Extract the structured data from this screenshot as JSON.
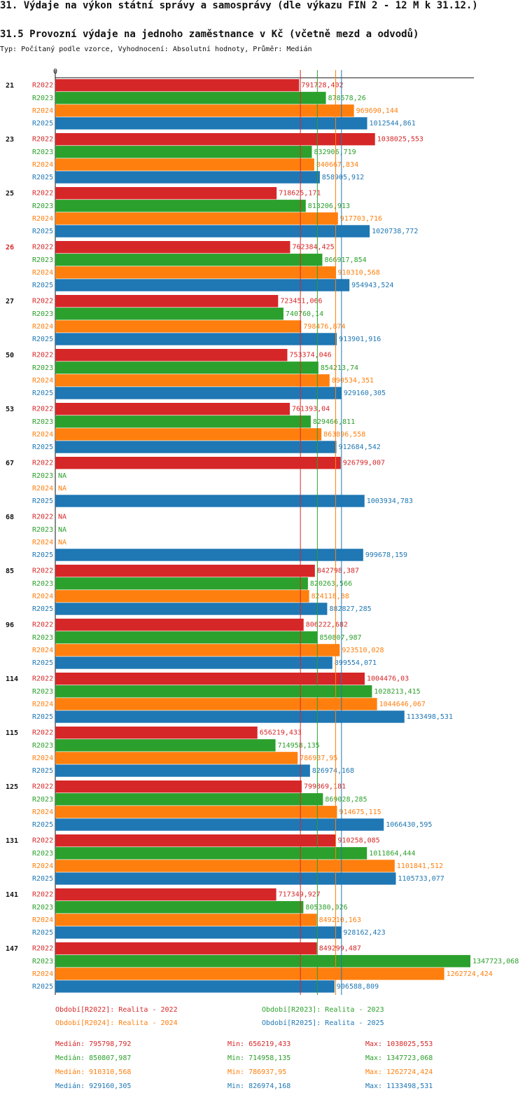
{
  "header": {
    "title": "31. Výdaje na výkon státní správy a samosprávy (dle výkazu FIN 2 - 12 M k 31.12.)",
    "subtitle": "31.5 Provozní výdaje na jednoho zaměstnance v Kč (včetně mezd a odvodů)",
    "type_line": "Typ: Počítaný podle vzorce, Vyhodnocení: Absolutní hodnoty, Průměr: Medián"
  },
  "colors": {
    "R2022": "#d62728",
    "R2023": "#2ca02c",
    "R2024": "#ff7f0e",
    "R2025": "#1f77b4",
    "highlight_group": "#d62728"
  },
  "chart_data": {
    "type": "bar",
    "orientation": "horizontal",
    "title": "31.5 Provozní výdaje na jednoho zaměstnance v Kč (včetně mezd a odvodů)",
    "axis_zero_label": "0",
    "na_label": "NA",
    "highlight_group": "26",
    "series_names": [
      "R2022",
      "R2023",
      "R2024",
      "R2025"
    ],
    "groups": [
      {
        "id": "21",
        "values": [
          "791728,402",
          "878578,26",
          "969690,144",
          "1012544,861"
        ]
      },
      {
        "id": "23",
        "values": [
          "1038025,553",
          "832906,719",
          "840667,834",
          "858905,912"
        ]
      },
      {
        "id": "25",
        "values": [
          "718625,171",
          "813206,913",
          "917703,716",
          "1020738,772"
        ]
      },
      {
        "id": "26",
        "values": [
          "762384,425",
          "866917,854",
          "910310,568",
          "954943,524"
        ]
      },
      {
        "id": "27",
        "values": [
          "723451,066",
          "740760,14",
          "798476,874",
          "913901,916"
        ]
      },
      {
        "id": "50",
        "values": [
          "753374,046",
          "854213,74",
          "890534,351",
          "929160,305"
        ]
      },
      {
        "id": "53",
        "values": [
          "761393,04",
          "829466,811",
          "863896,558",
          "912684,542"
        ]
      },
      {
        "id": "67",
        "values": [
          "926799,007",
          null,
          null,
          "1003934,783"
        ]
      },
      {
        "id": "68",
        "values": [
          null,
          null,
          null,
          "999678,159"
        ]
      },
      {
        "id": "85",
        "values": [
          "842798,387",
          "820263,566",
          "824118,88",
          "882827,285"
        ]
      },
      {
        "id": "96",
        "values": [
          "806222,682",
          "850807,987",
          "923510,028",
          "899554,071"
        ]
      },
      {
        "id": "114",
        "values": [
          "1004476,03",
          "1028213,415",
          "1044646,067",
          "1133498,531"
        ]
      },
      {
        "id": "115",
        "values": [
          "656219,433",
          "714958,135",
          "786937,95",
          "826974,168"
        ]
      },
      {
        "id": "125",
        "values": [
          "799869,181",
          "869028,285",
          "914675,115",
          "1066430,595"
        ]
      },
      {
        "id": "131",
        "values": [
          "910258,085",
          "1011864,444",
          "1101841,512",
          "1105733,077"
        ]
      },
      {
        "id": "141",
        "values": [
          "717349,927",
          "805380,026",
          "849210,163",
          "928162,423"
        ]
      },
      {
        "id": "147",
        "values": [
          "849299,487",
          "1347723,068",
          "1262724,424",
          "906588,809"
        ]
      }
    ],
    "medians": [
      795798.792,
      850807.987,
      910310.568,
      929160.305
    ]
  },
  "legend": {
    "periods": [
      {
        "series": "R2022",
        "text": "Období[R2022]: Realita - 2022"
      },
      {
        "series": "R2023",
        "text": "Období[R2023]: Realita - 2023"
      },
      {
        "series": "R2024",
        "text": "Období[R2024]: Realita - 2024"
      },
      {
        "series": "R2025",
        "text": "Období[R2025]: Realita - 2025"
      }
    ],
    "stats": [
      {
        "series": "R2022",
        "median": "Medián: 795798,792",
        "min": "Min: 656219,433",
        "max": "Max: 1038025,553"
      },
      {
        "series": "R2023",
        "median": "Medián: 850807,987",
        "min": "Min: 714958,135",
        "max": "Max: 1347723,068"
      },
      {
        "series": "R2024",
        "median": "Medián: 910310,568",
        "min": "Min: 786937,95",
        "max": "Max: 1262724,424"
      },
      {
        "series": "R2025",
        "median": "Medián: 929160,305",
        "min": "Min: 826974,168",
        "max": "Max: 1133498,531"
      }
    ]
  }
}
